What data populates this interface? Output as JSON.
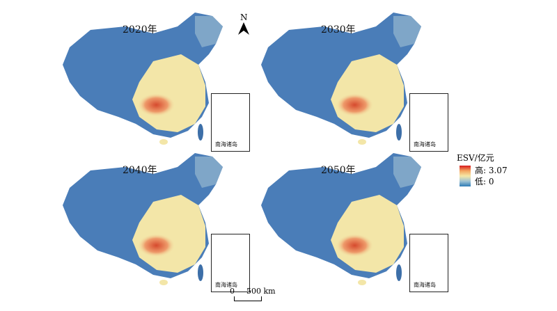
{
  "panels": [
    {
      "year": "2020年",
      "inset_label": "南海诸岛"
    },
    {
      "year": "2030年",
      "inset_label": "南海诸岛"
    },
    {
      "year": "2040年",
      "inset_label": "南海诸岛"
    },
    {
      "year": "2050年",
      "inset_label": "南海诸岛"
    }
  ],
  "north_arrow": {
    "letter": "N"
  },
  "legend": {
    "title": "ESV/亿元",
    "high_label": "高: 3.07",
    "low_label": "低: 0",
    "high_color": "#d7191c",
    "low_color": "#2c7bb6"
  },
  "scale_bar": {
    "start_label": "0",
    "end_label": "500 km"
  },
  "colors": {
    "low": "#4a7db8",
    "mid": "#f3e6a8",
    "high": "#d64a2e",
    "water": "#3d6fa8"
  }
}
